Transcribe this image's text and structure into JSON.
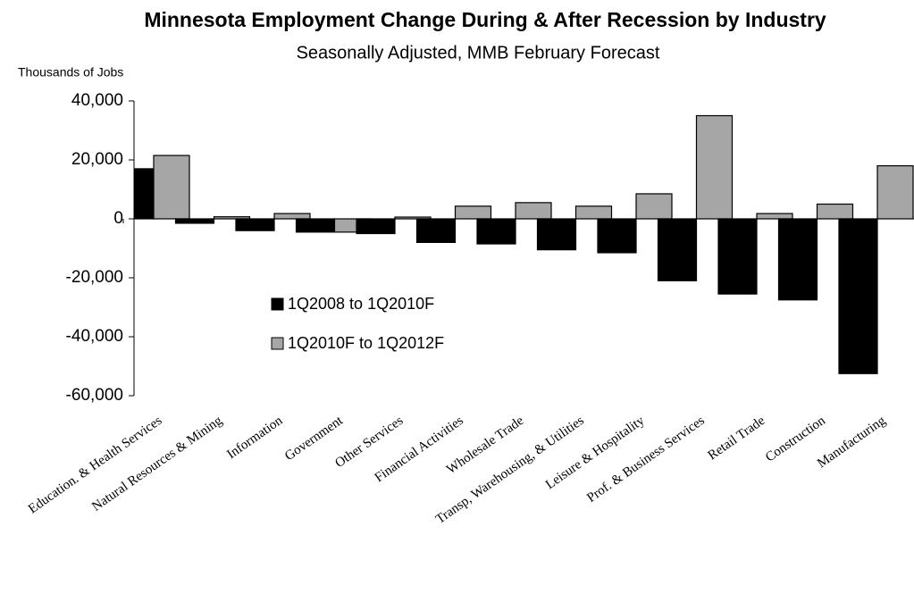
{
  "chart_data": {
    "type": "bar",
    "title": "Minnesota Employment Change During & After Recession by Industry",
    "subtitle": "Seasonally Adjusted, MMB February Forecast",
    "y_label": "Thousands  of Jobs",
    "categories": [
      "Education. & Health Services",
      "Natural Resources & Mining",
      "Information",
      "Government",
      "Other Services",
      "Financial Activities",
      "Wholesale Trade",
      "Transp, Warehousing, & Utilities",
      "Leisure & Hospitality",
      "Prof. & Business Services",
      "Retail Trade",
      "Construction",
      "Manufacturing"
    ],
    "series": [
      {
        "name": "1Q2008 to 1Q2010F",
        "color": "#000000",
        "values": [
          17000,
          -1500,
          -4000,
          -4500,
          -5000,
          -8000,
          -8500,
          -10500,
          -11500,
          -21000,
          -25500,
          -27500,
          -52500
        ]
      },
      {
        "name": "1Q2010F to 1Q2012F",
        "color": "#a6a6a6",
        "values": [
          21500,
          700,
          1800,
          -4500,
          600,
          4300,
          5500,
          4300,
          8500,
          35000,
          1800,
          5000,
          18000
        ]
      }
    ],
    "ylim": [
      -60000,
      40000
    ],
    "yticks": [
      {
        "value": -60000,
        "label": "-60,000"
      },
      {
        "value": -40000,
        "label": "-40,000"
      },
      {
        "value": -20000,
        "label": "-20,000"
      },
      0,
      {
        "value": 20000,
        "label": "20,000"
      },
      {
        "value": 40000,
        "label": "40,000"
      }
    ],
    "grid": false,
    "legend": "center"
  }
}
